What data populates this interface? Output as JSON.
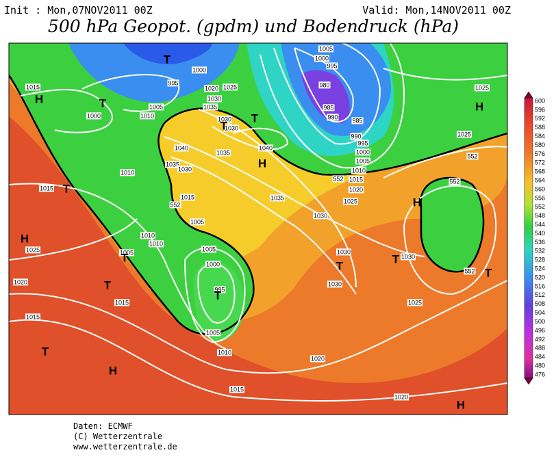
{
  "header": {
    "init": "Init : Mon,07NOV2011 00Z",
    "valid": "Valid: Mon,14NOV2011 00Z",
    "title": "500 hPa Geopot. (gpdm) und Bodendruck (hPa)"
  },
  "isobar_labels": [
    "1015",
    "1000",
    "1005",
    "1010",
    "995",
    "1000",
    "1020",
    "1025",
    "1030",
    "1035",
    "1030",
    "1030",
    "1040",
    "1035",
    "1040",
    "1035",
    "1030",
    "1010",
    "1015",
    "1015",
    "552",
    "1005",
    "1035",
    "1030",
    "1010",
    "1010",
    "1005",
    "1025",
    "1005",
    "1000",
    "995",
    "1020",
    "1015",
    "1015",
    "1005",
    "1010",
    "1030",
    "1030",
    "1030",
    "552",
    "1025",
    "1020",
    "1015",
    "1020",
    "1005",
    "1000",
    "995",
    "980",
    "985",
    "990",
    "985",
    "990",
    "995",
    "1000",
    "1005",
    "1010",
    "1015",
    "1020",
    "1025",
    "552",
    "1025",
    "1025",
    "552",
    "552"
  ],
  "pressure_centers": [
    "H",
    "T",
    "T",
    "T",
    "T",
    "H",
    "T",
    "H",
    "T",
    "T",
    "T",
    "T",
    "H",
    "T",
    "T",
    "H",
    "H",
    "T",
    "H"
  ],
  "colorbar": [
    600,
    596,
    592,
    588,
    584,
    580,
    576,
    572,
    568,
    564,
    560,
    556,
    552,
    548,
    544,
    540,
    536,
    532,
    528,
    524,
    520,
    516,
    512,
    508,
    504,
    500,
    496,
    492,
    488,
    484,
    480,
    476
  ],
  "footer": {
    "source": "Daten: ECMWF",
    "copyright": "(C) Wetterzentrale",
    "url": "www.wetterzentrale.de"
  }
}
